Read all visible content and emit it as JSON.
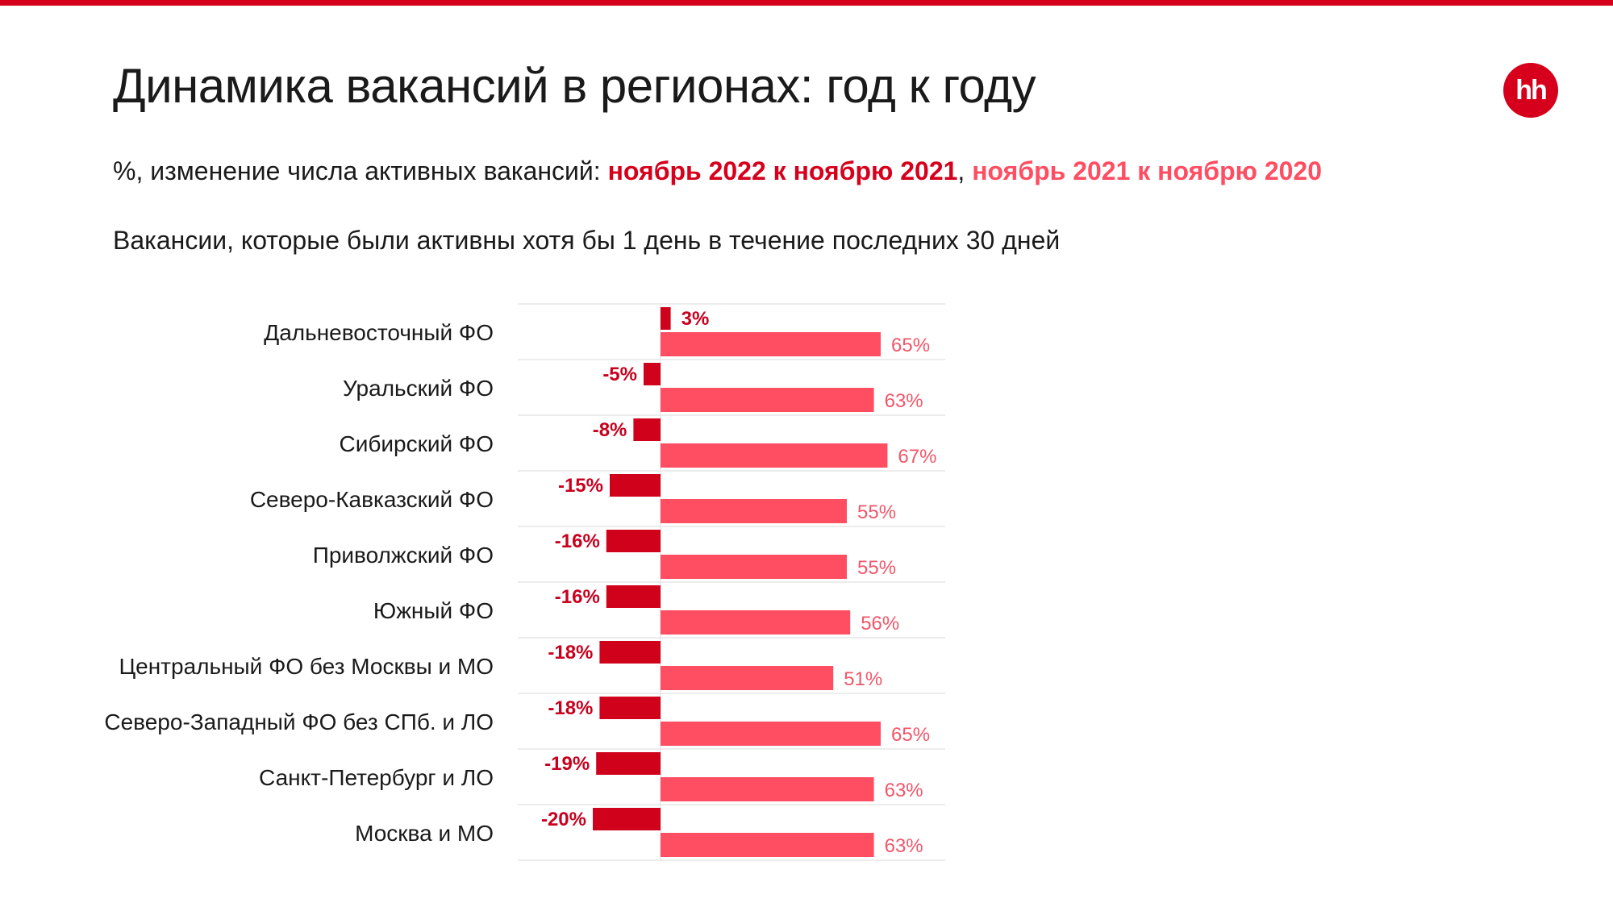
{
  "slide": {
    "title": "Динамика вакансий в регионах: год к году",
    "logo_text": "hh",
    "subtitle_prefix": "%, изменение числа активных вакансий: ",
    "subtitle_series_1": "ноябрь 2022 к ноябрю 2021",
    "subtitle_separator": ", ",
    "subtitle_series_2": "ноябрь 2021 к ноябрю 2020",
    "note": "Вакансии, которые были активны хотя бы 1 день в течение последних 30 дней"
  },
  "colors": {
    "accent": "#d6001c",
    "series_2022": "#d0021b",
    "series_2021": "#ff4d62",
    "label_2022": "#c8001e",
    "label_2021": "#f0566a",
    "gridline": "#e6e6e6"
  },
  "chart_data": {
    "type": "bar",
    "orientation": "horizontal",
    "categories": [
      "Дальневосточный ФО",
      "Уральский ФО",
      "Сибирский ФО",
      "Северо-Кавказский ФО",
      "Приволжский ФО",
      "Южный ФО",
      "Центральный ФО без Москвы и МО",
      "Северо-Западный ФО без СПб. и ЛО",
      "Санкт-Петербург и ЛО",
      "Москва и МО"
    ],
    "series": [
      {
        "name": "ноябрь 2022 к ноябрю 2021",
        "values": [
          3,
          -5,
          -8,
          -15,
          -16,
          -16,
          -18,
          -18,
          -19,
          -20
        ],
        "labels": [
          "3%",
          "-5%",
          "-8%",
          "-15%",
          "-16%",
          "-16%",
          "-18%",
          "-18%",
          "-19%",
          "-20%"
        ]
      },
      {
        "name": "ноябрь 2021 к ноябрю 2020",
        "values": [
          65,
          63,
          67,
          55,
          55,
          56,
          51,
          65,
          63,
          63
        ],
        "labels": [
          "65%",
          "63%",
          "67%",
          "55%",
          "55%",
          "56%",
          "51%",
          "65%",
          "63%",
          "63%"
        ]
      }
    ],
    "xlim": [
      -40,
      80
    ],
    "grid": true,
    "legend": "none"
  }
}
